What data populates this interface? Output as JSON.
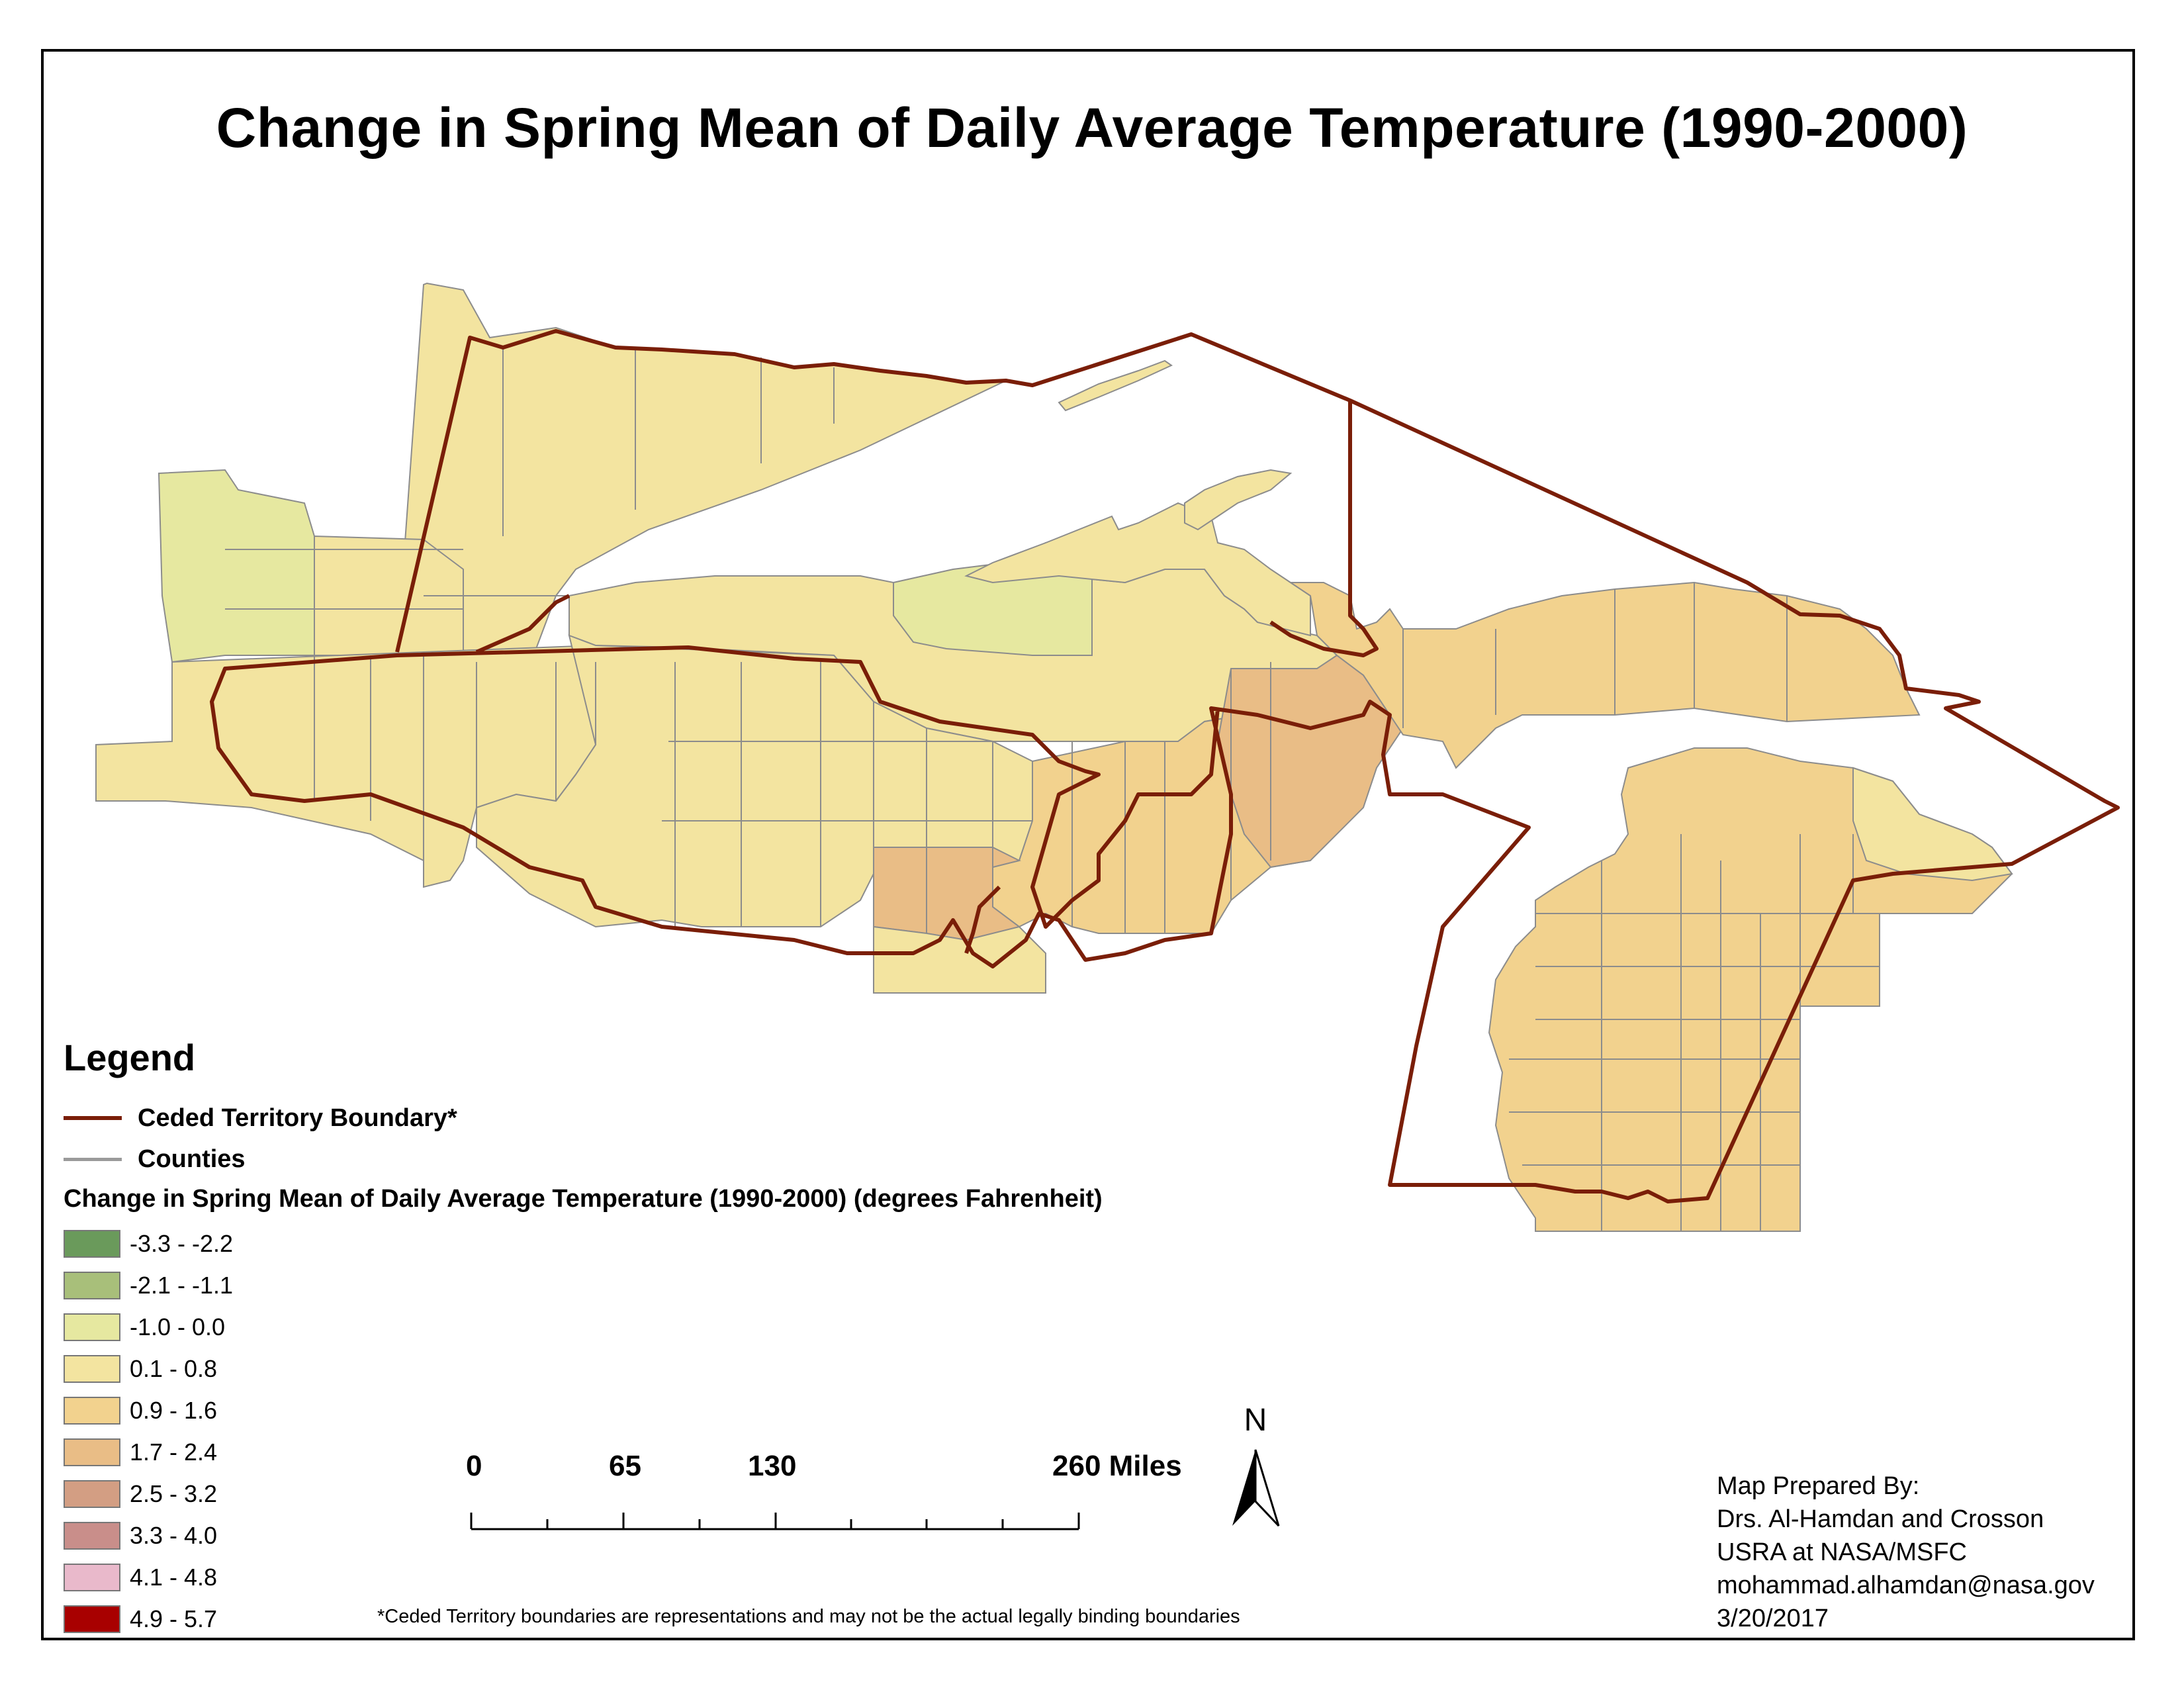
{
  "title": "Change in Spring Mean of Daily Average Temperature (1990-2000)",
  "legend": {
    "heading": "Legend",
    "boundary_label": "Ceded Territory Boundary*",
    "counties_label": "Counties",
    "classes_title": "Change in Spring Mean of Daily Average Temperature (1990-2000) (degrees Fahrenheit)",
    "classes": [
      {
        "label": "-3.3 - -2.2",
        "color": "#6a9a5b"
      },
      {
        "label": "-2.1 - -1.1",
        "color": "#a8bf7a"
      },
      {
        "label": "-1.0 - 0.0",
        "color": "#e6e8a0"
      },
      {
        "label": "0.1 - 0.8",
        "color": "#f3e4a0"
      },
      {
        "label": "0.9 - 1.6",
        "color": "#f2d28e"
      },
      {
        "label": "1.7 - 2.4",
        "color": "#e9bd86"
      },
      {
        "label": "2.5 - 3.2",
        "color": "#d39e83"
      },
      {
        "label": "3.3 - 4.0",
        "color": "#c98e8a"
      },
      {
        "label": "4.1 - 4.8",
        "color": "#e9b9cb"
      },
      {
        "label": "4.9 - 5.7",
        "color": "#a80000"
      }
    ]
  },
  "colors": {
    "boundary": "#7a1e08",
    "county_line": "#8c8c8c",
    "water": "#ffffff"
  },
  "scale_bar": {
    "labels": [
      "0",
      "65",
      "130",
      "260 Miles"
    ]
  },
  "north_arrow": {
    "label": "N",
    "icon": "north-arrow-icon"
  },
  "credits": {
    "line1": "Map Prepared By:",
    "line2": "Drs. Al-Hamdan and Crosson",
    "line3": "USRA at NASA/MSFC",
    "line4": "mohammad.alhamdan@nasa.gov",
    "line5": "3/20/2017"
  },
  "footnote": "*Ceded Territory boundaries are representations and may not be the actual legally binding boundaries"
}
